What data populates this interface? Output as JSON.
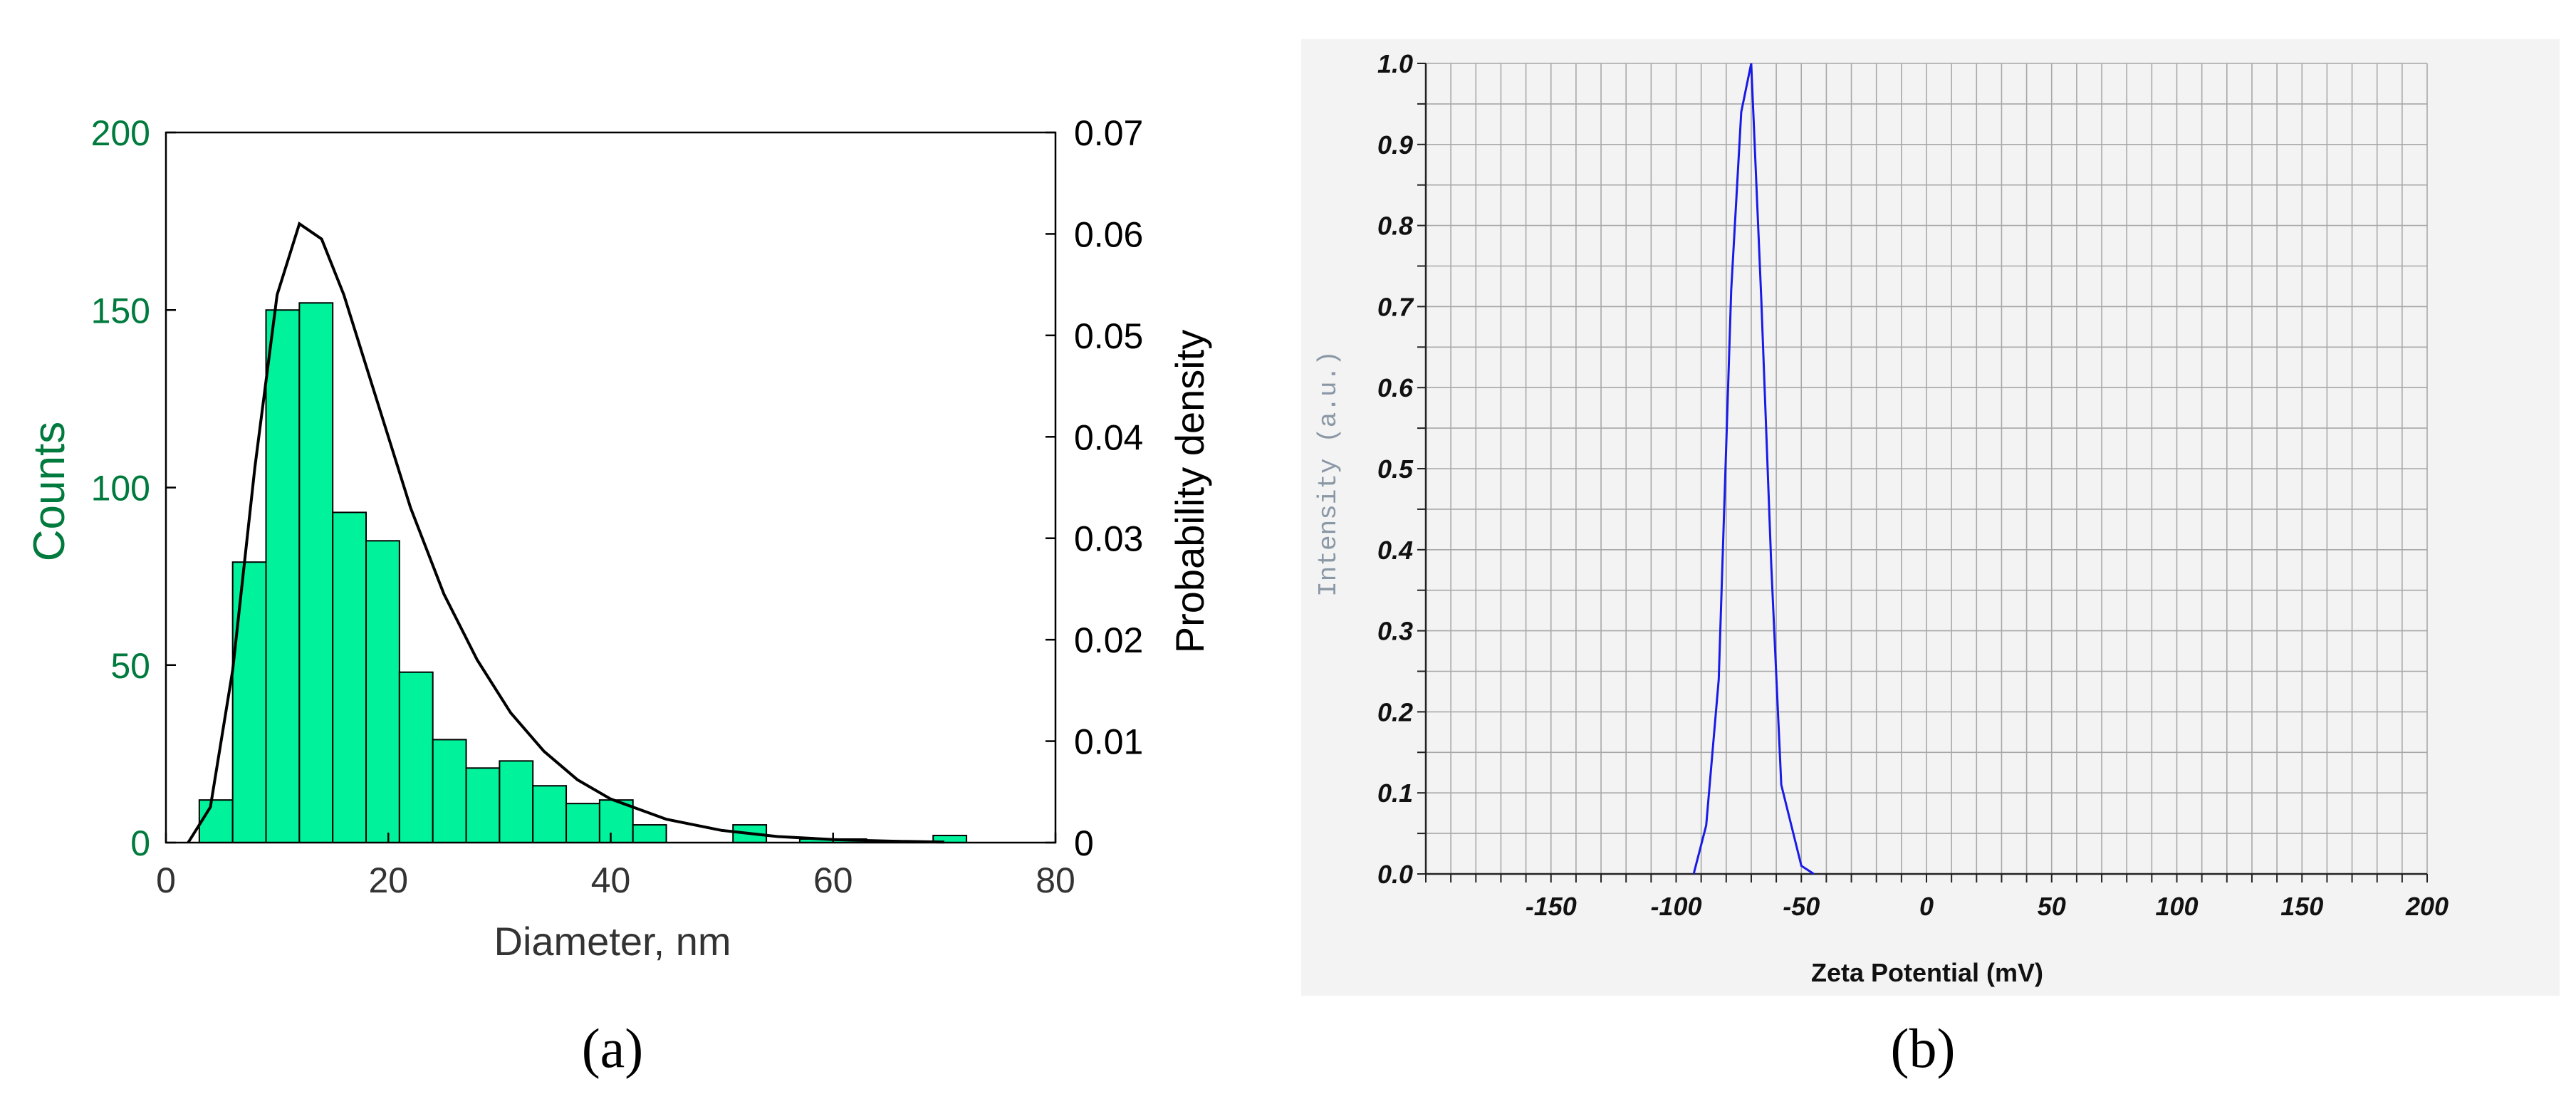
{
  "colors": {
    "bar_fill": "#00F29B",
    "counts_axis": "#007A3D",
    "curve": "#000000",
    "zeta_line": "#1A1AE6",
    "panel_b_bg": "#F3F3F3",
    "grid": "#A8A8A8",
    "intensity_label": "#8A97A5"
  },
  "panel_labels": {
    "a": "(a)",
    "b": "(b)"
  },
  "chart_data": [
    {
      "type": "bar",
      "xlabel": "Diameter, nm",
      "ylabel": "Counts",
      "y2label": "Probability density",
      "xlim": [
        0,
        80
      ],
      "ylim": [
        0,
        200
      ],
      "y2lim": [
        0,
        0.07
      ],
      "x_ticks": [
        "0",
        "20",
        "40",
        "60",
        "80"
      ],
      "y_ticks": [
        "0",
        "50",
        "100",
        "150",
        "200"
      ],
      "y2_ticks": [
        "0",
        "0.01",
        "0.02",
        "0.03",
        "0.04",
        "0.05",
        "0.06",
        "0.07"
      ],
      "bin_width": 3,
      "bins": [
        {
          "start": 3,
          "count": 12
        },
        {
          "start": 6,
          "count": 79
        },
        {
          "start": 9,
          "count": 150
        },
        {
          "start": 12,
          "count": 152
        },
        {
          "start": 15,
          "count": 93
        },
        {
          "start": 18,
          "count": 85
        },
        {
          "start": 21,
          "count": 48
        },
        {
          "start": 24,
          "count": 29
        },
        {
          "start": 27,
          "count": 21
        },
        {
          "start": 30,
          "count": 23
        },
        {
          "start": 33,
          "count": 16
        },
        {
          "start": 36,
          "count": 11
        },
        {
          "start": 39,
          "count": 12
        },
        {
          "start": 42,
          "count": 5
        },
        {
          "start": 51,
          "count": 5
        },
        {
          "start": 57,
          "count": 1
        },
        {
          "start": 60,
          "count": 1
        },
        {
          "start": 69,
          "count": 2
        }
      ],
      "fit_curve": {
        "name": "Probability density",
        "x": [
          2,
          4,
          6,
          8,
          10,
          12,
          14,
          16,
          18,
          20,
          22,
          25,
          28,
          31,
          34,
          37,
          40,
          45,
          50,
          55,
          60,
          65,
          70
        ],
        "y": [
          0.0,
          0.0035,
          0.017,
          0.037,
          0.054,
          0.061,
          0.0595,
          0.054,
          0.047,
          0.04,
          0.033,
          0.0245,
          0.018,
          0.0128,
          0.009,
          0.0062,
          0.0043,
          0.0023,
          0.0012,
          0.0006,
          0.0003,
          0.00015,
          5e-05
        ]
      },
      "grid": false
    },
    {
      "type": "line",
      "xlabel": "Zeta Potential (mV)",
      "ylabel": "Intensity (a.u.)",
      "xlim": [
        -200,
        200
      ],
      "ylim": [
        0.0,
        1.0
      ],
      "x_ticks": [
        "-150",
        "-100",
        "-50",
        "0",
        "50",
        "100",
        "150",
        "200"
      ],
      "y_ticks": [
        "0.0",
        "0.1",
        "0.2",
        "0.3",
        "0.4",
        "0.5",
        "0.6",
        "0.7",
        "0.8",
        "0.9",
        "1.0"
      ],
      "x": [
        -93,
        -88,
        -83,
        -78,
        -74,
        -70,
        -66,
        -62,
        -58,
        -54,
        -50,
        -45
      ],
      "y": [
        0.0,
        0.06,
        0.24,
        0.72,
        0.94,
        1.0,
        0.71,
        0.38,
        0.11,
        0.06,
        0.01,
        0.0
      ],
      "grid": true
    }
  ]
}
